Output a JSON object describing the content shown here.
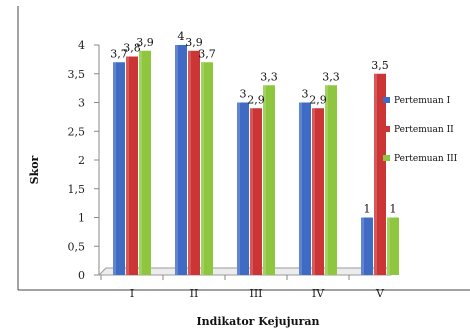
{
  "chart_data": {
    "type": "bar",
    "title": "",
    "xlabel": "Indikator Kejujuran",
    "ylabel": "Skor",
    "ylim": [
      0,
      4
    ],
    "yticks": [
      "0",
      "0,5",
      "1",
      "1,5",
      "2",
      "2,5",
      "3",
      "3,5",
      "4"
    ],
    "categories": [
      "I",
      "II",
      "III",
      "IV",
      "V"
    ],
    "legend_position": "right",
    "grid": false,
    "series": [
      {
        "name": "Pertemuan I",
        "color": "#3f6bc5",
        "values": [
          3.7,
          4,
          3,
          3,
          1
        ],
        "labels": [
          "3,7",
          "4",
          "3",
          "3",
          "1"
        ]
      },
      {
        "name": "Pertemuan II",
        "color": "#cc3535",
        "values": [
          3.8,
          3.9,
          2.9,
          2.9,
          3.5
        ],
        "labels": [
          "3,8",
          "3,9",
          "2,9",
          "2,9",
          "3,5"
        ]
      },
      {
        "name": "Pertemuan III",
        "color": "#8ec63f",
        "values": [
          3.9,
          3.7,
          3.3,
          3.3,
          1
        ],
        "labels": [
          "3,9",
          "3,7",
          "3,3",
          "3,3",
          "1"
        ]
      }
    ]
  }
}
